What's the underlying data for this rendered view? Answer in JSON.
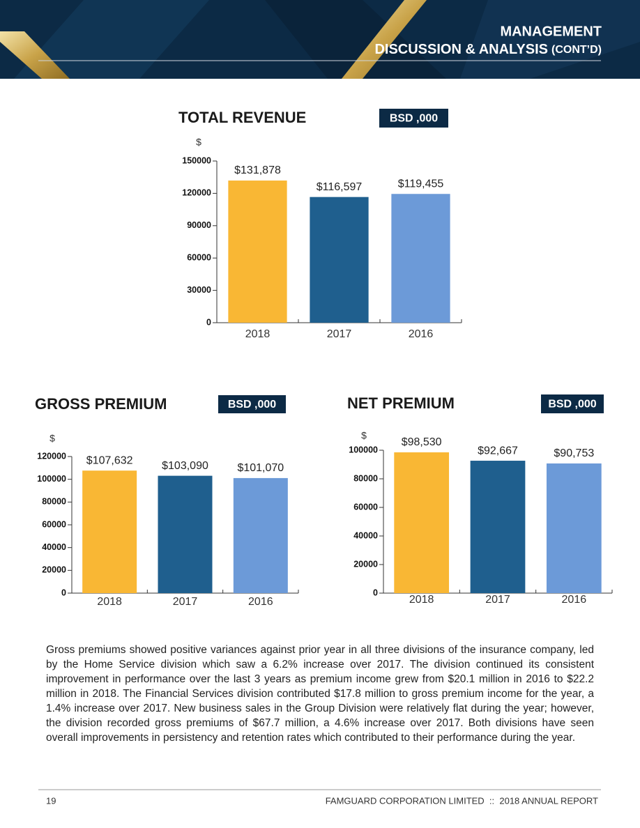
{
  "header": {
    "title_line1": "MANAGEMENT",
    "title_line2": "DISCUSSION & ANALYSIS",
    "title_suffix": "(CONT’D)"
  },
  "chart_data": [
    {
      "type": "bar",
      "title": "TOTAL REVENUE",
      "unit_badge": "BSD ,000",
      "y_label": "$",
      "categories": [
        "2018",
        "2017",
        "2016"
      ],
      "values": [
        131878,
        116597,
        119455
      ],
      "value_labels": [
        "$131,878",
        "$116,597",
        "$119,455"
      ],
      "colors": [
        "#f9b734",
        "#1f5f8e",
        "#6c9ad8"
      ],
      "ylim": [
        0,
        150000
      ],
      "yticks": [
        0,
        30000,
        60000,
        90000,
        120000,
        150000
      ]
    },
    {
      "type": "bar",
      "title": "GROSS PREMIUM",
      "unit_badge": "BSD ,000",
      "y_label": "$",
      "categories": [
        "2018",
        "2017",
        "2016"
      ],
      "values": [
        107632,
        103090,
        101070
      ],
      "value_labels": [
        "$107,632",
        "$103,090",
        "$101,070"
      ],
      "colors": [
        "#f9b734",
        "#1f5f8e",
        "#6c9ad8"
      ],
      "ylim": [
        0,
        120000
      ],
      "yticks": [
        0,
        20000,
        40000,
        60000,
        80000,
        100000,
        120000
      ]
    },
    {
      "type": "bar",
      "title": "NET PREMIUM",
      "unit_badge": "BSD ,000",
      "y_label": "$",
      "categories": [
        "2018",
        "2017",
        "2016"
      ],
      "values": [
        98530,
        92667,
        90753
      ],
      "value_labels": [
        "$98,530",
        "$92,667",
        "$90,753"
      ],
      "colors": [
        "#f9b734",
        "#1f5f8e",
        "#6c9ad8"
      ],
      "ylim": [
        0,
        100000
      ],
      "yticks": [
        0,
        20000,
        40000,
        60000,
        80000,
        100000
      ]
    }
  ],
  "body": {
    "paragraph": "Gross premiums showed positive variances against prior year in all three divisions of the insurance company, led by the Home Service division which saw a 6.2% increase over 2017.  The division continued its consistent improvement in performance over the last 3 years as premium income grew from $20.1 million in 2016 to $22.2 million in 2018.  The Financial Services division contributed $17.8 million to gross premium income for the year, a 1.4% increase over 2017.  New business sales in the Group Division were relatively flat during the year; however, the division recorded gross premiums of $67.7 million, a 4.6% increase over 2017.  Both divisions have seen overall improvements in persistency and retention rates which contributed to their performance during the year."
  },
  "footer": {
    "page_number": "19",
    "report": "FAMGUARD CORPORATION LIMITED  ::  2018 ANNUAL REPORT"
  }
}
